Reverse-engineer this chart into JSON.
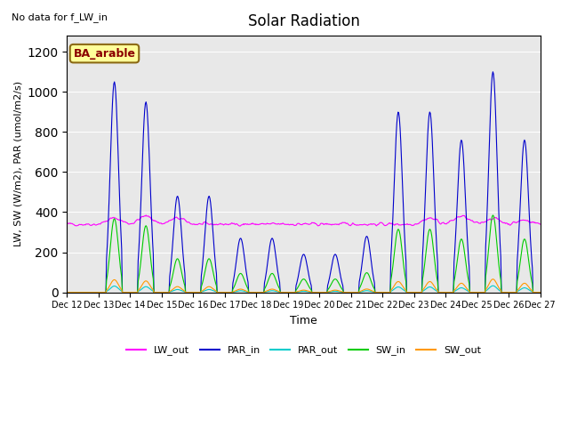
{
  "title": "Solar Radiation",
  "subtitle": "No data for f_LW_in",
  "xlabel": "Time",
  "ylabel": "LW, SW (W/m2), PAR (umol/m2/s)",
  "site_label": "BA_arable",
  "xlim_start": 12,
  "xlim_end": 27,
  "ylim": [
    0,
    1280
  ],
  "yticks": [
    0,
    200,
    400,
    600,
    800,
    1000,
    1200
  ],
  "xtick_labels": [
    "Dec 12",
    "Dec 13",
    "Dec 14",
    "Dec 15",
    "Dec 16",
    "Dec 17",
    "Dec 18",
    "Dec 19",
    "Dec 20",
    "Dec 21",
    "Dec 22",
    "Dec 23",
    "Dec 24",
    "Dec 25",
    "Dec 26",
    "Dec 27"
  ],
  "colors": {
    "LW_out": "#ff00ff",
    "PAR_in": "#0000cc",
    "PAR_out": "#00cccc",
    "SW_in": "#00cc00",
    "SW_out": "#ff9900"
  },
  "bg_color": "#e8e8e8",
  "lw_out_base": 340,
  "lw_out_noise": 25
}
